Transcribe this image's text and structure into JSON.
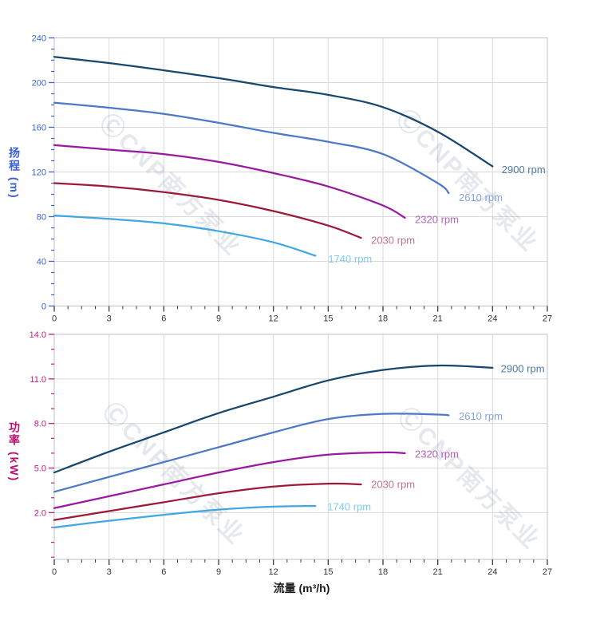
{
  "x_axis_title": "流量 (m³/h)",
  "watermark": {
    "text": "ⒸCNP南方泵业",
    "color": "rgba(96,110,145,0.16)"
  },
  "chart_data": [
    {
      "type": "line",
      "title": "",
      "xlabel": "流量 (m³/h)",
      "ylabel": "扬程 (m)",
      "xlim": [
        0,
        27
      ],
      "ylim": [
        0,
        240
      ],
      "grid": true,
      "legend_position": "curve-end-labels",
      "x_ticks": {
        "major_step": 3,
        "minor_step": 0.75,
        "labels": [
          "0",
          "3",
          "6",
          "9",
          "12",
          "15",
          "18",
          "21",
          "24",
          "27"
        ]
      },
      "y_ticks": {
        "majors": [
          0,
          40,
          80,
          120,
          160,
          200,
          240
        ],
        "labels": [
          "0",
          "40",
          "80",
          "120",
          "160",
          "200",
          "240"
        ],
        "minor_step": 10,
        "minor_from": 0
      },
      "axis_color": "#3c64cf",
      "x_axis_color": "#3c3c3c",
      "series": [
        {
          "name": "2900 rpm",
          "color": "#17466e",
          "label_color": "#4d7ba8",
          "label_at": [
            24.5,
            122
          ],
          "points": [
            [
              0,
              223
            ],
            [
              3,
              217.5
            ],
            [
              6,
              211
            ],
            [
              9,
              204
            ],
            [
              12,
              196
            ],
            [
              15,
              189
            ],
            [
              18,
              178
            ],
            [
              21,
              156
            ],
            [
              24,
              125
            ]
          ]
        },
        {
          "name": "2610 rpm",
          "color": "#4d78c8",
          "label_color": "#85a2dc",
          "label_at": [
            22.15,
            97
          ],
          "points": [
            [
              0,
              182
            ],
            [
              3,
              177.5
            ],
            [
              6,
              172
            ],
            [
              9,
              164
            ],
            [
              12,
              155
            ],
            [
              15,
              147
            ],
            [
              18,
              136
            ],
            [
              21,
              110
            ],
            [
              21.6,
              101
            ]
          ]
        },
        {
          "name": "2320 rpm",
          "color": "#98199f",
          "label_color": "#b362bd",
          "label_at": [
            19.75,
            77.5
          ],
          "points": [
            [
              0,
              144
            ],
            [
              3,
              140
            ],
            [
              6,
              136
            ],
            [
              9,
              129
            ],
            [
              12,
              119
            ],
            [
              15,
              107
            ],
            [
              18,
              90
            ],
            [
              19.2,
              79
            ]
          ]
        },
        {
          "name": "2030 rpm",
          "color": "#9c1a38",
          "label_color": "#c17487",
          "label_at": [
            17.35,
            59
          ],
          "points": [
            [
              0,
              110
            ],
            [
              3,
              107
            ],
            [
              6,
              102
            ],
            [
              9,
              95
            ],
            [
              12,
              85
            ],
            [
              15,
              72
            ],
            [
              16.8,
              61
            ]
          ]
        },
        {
          "name": "1740 rpm",
          "color": "#3fa7e2",
          "label_color": "#7fcbf2",
          "label_at": [
            15.0,
            42
          ],
          "points": [
            [
              0,
              81
            ],
            [
              3,
              78
            ],
            [
              6,
              74
            ],
            [
              9,
              67
            ],
            [
              12,
              57
            ],
            [
              14.3,
              45
            ]
          ]
        }
      ]
    },
    {
      "type": "line",
      "title": "",
      "xlabel": "流量 (m³/h)",
      "ylabel": "功率 (kW)",
      "xlim": [
        0,
        27
      ],
      "ylim": [
        -1.15,
        14
      ],
      "grid": true,
      "legend_position": "curve-end-labels",
      "x_ticks": {
        "major_step": 3,
        "minor_step": 0.75,
        "labels": [
          "0",
          "3",
          "6",
          "9",
          "12",
          "15",
          "18",
          "21",
          "24",
          "27"
        ]
      },
      "y_ticks": {
        "majors": [
          2,
          5,
          8,
          11,
          14
        ],
        "labels": [
          "2.0",
          "5.0",
          "8.0",
          "11.0",
          "14.0"
        ],
        "minor_step": 1,
        "minor_from": -1
      },
      "axis_color": "#c91984",
      "x_axis_color": "#3c3c3c",
      "series": [
        {
          "name": "2900 rpm",
          "color": "#17466e",
          "label_color": "#4d7ba8",
          "label_at": [
            24.45,
            11.7
          ],
          "points": [
            [
              0,
              4.7
            ],
            [
              3,
              6.1
            ],
            [
              6,
              7.4
            ],
            [
              9,
              8.7
            ],
            [
              12,
              9.8
            ],
            [
              15,
              10.9
            ],
            [
              18,
              11.6
            ],
            [
              21,
              11.9
            ],
            [
              24,
              11.75
            ]
          ]
        },
        {
          "name": "2610 rpm",
          "color": "#4d78c8",
          "label_color": "#85a2dc",
          "label_at": [
            22.15,
            8.5
          ],
          "points": [
            [
              0,
              3.4
            ],
            [
              3,
              4.4
            ],
            [
              6,
              5.4
            ],
            [
              9,
              6.4
            ],
            [
              12,
              7.4
            ],
            [
              15,
              8.3
            ],
            [
              18,
              8.65
            ],
            [
              21,
              8.6
            ],
            [
              21.6,
              8.55
            ]
          ]
        },
        {
          "name": "2320 rpm",
          "color": "#98199f",
          "label_color": "#b362bd",
          "label_at": [
            19.75,
            5.95
          ],
          "points": [
            [
              0,
              2.3
            ],
            [
              3,
              3.1
            ],
            [
              6,
              3.9
            ],
            [
              9,
              4.7
            ],
            [
              12,
              5.4
            ],
            [
              15,
              5.9
            ],
            [
              18,
              6.05
            ],
            [
              19.2,
              6.0
            ]
          ]
        },
        {
          "name": "2030 rpm",
          "color": "#9c1a38",
          "label_color": "#c17487",
          "label_at": [
            17.35,
            3.9
          ],
          "points": [
            [
              0,
              1.5
            ],
            [
              3,
              2.1
            ],
            [
              6,
              2.7
            ],
            [
              9,
              3.3
            ],
            [
              12,
              3.75
            ],
            [
              15,
              3.95
            ],
            [
              16.8,
              3.9
            ]
          ]
        },
        {
          "name": "1740 rpm",
          "color": "#3fa7e2",
          "label_color": "#7fcbf2",
          "label_at": [
            14.95,
            2.4
          ],
          "points": [
            [
              0,
              1.0
            ],
            [
              3,
              1.45
            ],
            [
              6,
              1.85
            ],
            [
              9,
              2.2
            ],
            [
              12,
              2.4
            ],
            [
              14.3,
              2.45
            ]
          ]
        }
      ]
    }
  ]
}
